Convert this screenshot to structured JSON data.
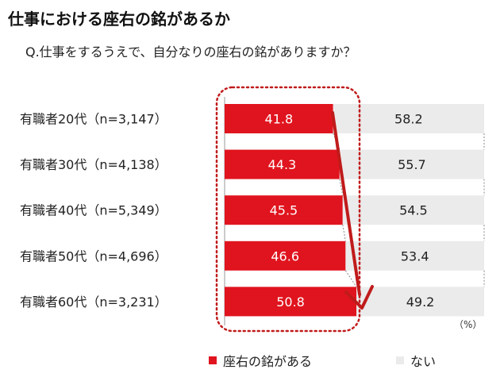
{
  "title": "仕事における座右の銘があるか",
  "question": "Q.仕事をするうえで、自分なりの座右の銘がありますか？",
  "unit": "（%）",
  "colors": {
    "yes": "#e0141e",
    "no": "#ebebeb",
    "accent": "#c01b1b"
  },
  "chart_data": {
    "type": "bar",
    "stacked": true,
    "orientation": "horizontal",
    "categories": [
      "有職者20代（n=3,147）",
      "有職者30代（n=4,138）",
      "有職者40代（n=5,349）",
      "有職者50代（n=4,696）",
      "有職者60代（n=3,231）"
    ],
    "series": [
      {
        "name": "座右の銘がある",
        "values": [
          41.8,
          44.3,
          45.5,
          46.6,
          50.8
        ]
      },
      {
        "name": "ない",
        "values": [
          58.2,
          55.7,
          54.5,
          53.4,
          49.2
        ]
      }
    ],
    "xlim": [
      0,
      100
    ],
    "legend": "bottom"
  }
}
